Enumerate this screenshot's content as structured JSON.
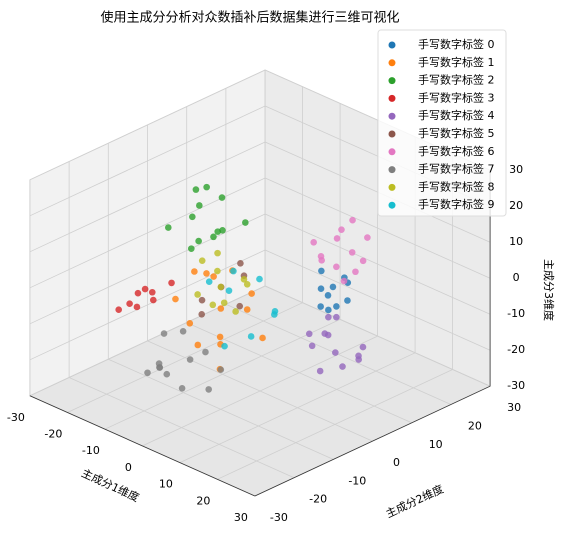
{
  "chart_data": {
    "type": "scatter3d",
    "title": "使用主成分分析对众数插补后数据集进行三维可视化",
    "xlabel": "主成分1维度",
    "ylabel": "主成分2维度",
    "zlabel": "主成分3维度",
    "xlim": [
      -30,
      30
    ],
    "ylim": [
      -30,
      30
    ],
    "zlim": [
      -30,
      30
    ],
    "xticks": [
      -30,
      -20,
      -10,
      0,
      10,
      20,
      30
    ],
    "yticks": [
      -30,
      -20,
      -10,
      0,
      10,
      20,
      30
    ],
    "zticks": [
      -30,
      -20,
      -10,
      0,
      10,
      20,
      30
    ],
    "grid": true,
    "legend": "upper right",
    "series": [
      {
        "name": "手写数字标签 0",
        "color": "#1f77b4",
        "x": [
          10,
          14,
          12,
          8,
          16,
          11,
          13,
          9,
          15,
          12
        ],
        "y": [
          6,
          9,
          4,
          8,
          7,
          11,
          5,
          10,
          3,
          8
        ],
        "z": [
          0,
          2,
          -3,
          3,
          -1,
          1,
          -4,
          -2,
          2,
          -5
        ]
      },
      {
        "name": "手写数字标签 1",
        "color": "#ff7f0e",
        "x": [
          0,
          -4,
          4,
          -8,
          2,
          6,
          -2,
          -6,
          8,
          -3,
          3,
          -10,
          5,
          1
        ],
        "y": [
          -10,
          -8,
          -14,
          -6,
          -12,
          -9,
          -16,
          -11,
          -7,
          -13,
          -5,
          -12,
          -15,
          -8
        ],
        "z": [
          -2,
          4,
          -6,
          2,
          -10,
          0,
          -4,
          6,
          -8,
          -12,
          1,
          -3,
          -14,
          8
        ]
      },
      {
        "name": "手写数字标签 2",
        "color": "#2ca02c",
        "x": [
          -12,
          -8,
          -15,
          -5,
          -10,
          -14,
          -7,
          -11,
          -3,
          -17,
          -9,
          -6
        ],
        "y": [
          -4,
          -8,
          -2,
          -6,
          0,
          -10,
          -3,
          -7,
          -9,
          -1,
          -5,
          2
        ],
        "z": [
          18,
          12,
          20,
          15,
          10,
          14,
          22,
          8,
          16,
          11,
          25,
          13
        ]
      },
      {
        "name": "手写数字标签 3",
        "color": "#d62728",
        "x": [
          -16,
          -20,
          -12,
          -18,
          -14,
          -22,
          -10,
          -17
        ],
        "y": [
          -14,
          -12,
          -16,
          -10,
          -18,
          -15,
          -13,
          -17
        ],
        "z": [
          -2,
          -6,
          0,
          -8,
          -4,
          -10,
          2,
          -5
        ]
      },
      {
        "name": "手写数字标签 4",
        "color": "#9467bd",
        "x": [
          14,
          18,
          12,
          20,
          16,
          10,
          17,
          22,
          13,
          19,
          15,
          11
        ],
        "y": [
          4,
          2,
          8,
          6,
          -2,
          3,
          10,
          0,
          5,
          7,
          1,
          6
        ],
        "z": [
          -10,
          -12,
          -8,
          -14,
          -9,
          -11,
          -15,
          -13,
          -6,
          -16,
          -18,
          -12
        ]
      },
      {
        "name": "手写数字标签 5",
        "color": "#8c564b",
        "x": [
          -2,
          2,
          -5,
          4,
          0,
          -3
        ],
        "y": [
          -8,
          -6,
          -10,
          -9,
          -5,
          -12
        ],
        "z": [
          2,
          6,
          -2,
          0,
          8,
          -4
        ]
      },
      {
        "name": "手写数字标签 6",
        "color": "#e377c2",
        "x": [
          8,
          12,
          14,
          6,
          10,
          16,
          9,
          13,
          11,
          7,
          15,
          5
        ],
        "y": [
          12,
          8,
          14,
          10,
          6,
          11,
          15,
          9,
          13,
          7,
          10,
          16
        ],
        "z": [
          10,
          6,
          12,
          4,
          9,
          8,
          14,
          2,
          7,
          11,
          5,
          9
        ]
      },
      {
        "name": "手写数字标签 7",
        "color": "#7f7f7f",
        "x": [
          -4,
          -8,
          -2,
          -10,
          -6,
          0,
          -12,
          -3,
          -7,
          2,
          -9,
          -5
        ],
        "y": [
          -14,
          -18,
          -12,
          -16,
          -20,
          -10,
          -13,
          -17,
          -22,
          -15,
          -11,
          -19
        ],
        "z": [
          -16,
          -18,
          -14,
          -20,
          -15,
          -19,
          -13,
          -22,
          -17,
          -21,
          -12,
          -18
        ]
      },
      {
        "name": "手写数字标签 8",
        "color": "#bcbd22",
        "x": [
          0,
          -3,
          3,
          -6,
          2,
          5,
          -2,
          -4,
          6,
          1
        ],
        "y": [
          -10,
          -8,
          -12,
          -9,
          -6,
          -11,
          -14,
          -7,
          -9,
          -13
        ],
        "z": [
          4,
          6,
          2,
          8,
          5,
          0,
          3,
          10,
          7,
          1
        ]
      },
      {
        "name": "手写数字标签 9",
        "color": "#17becf",
        "x": [
          -2,
          3,
          6,
          -5,
          1,
          8,
          -1,
          4
        ],
        "y": [
          -6,
          -3,
          -8,
          -2,
          -10,
          -4,
          -12,
          0
        ],
        "z": [
          0,
          4,
          -8,
          2,
          -12,
          -3,
          6,
          -6
        ]
      }
    ]
  }
}
